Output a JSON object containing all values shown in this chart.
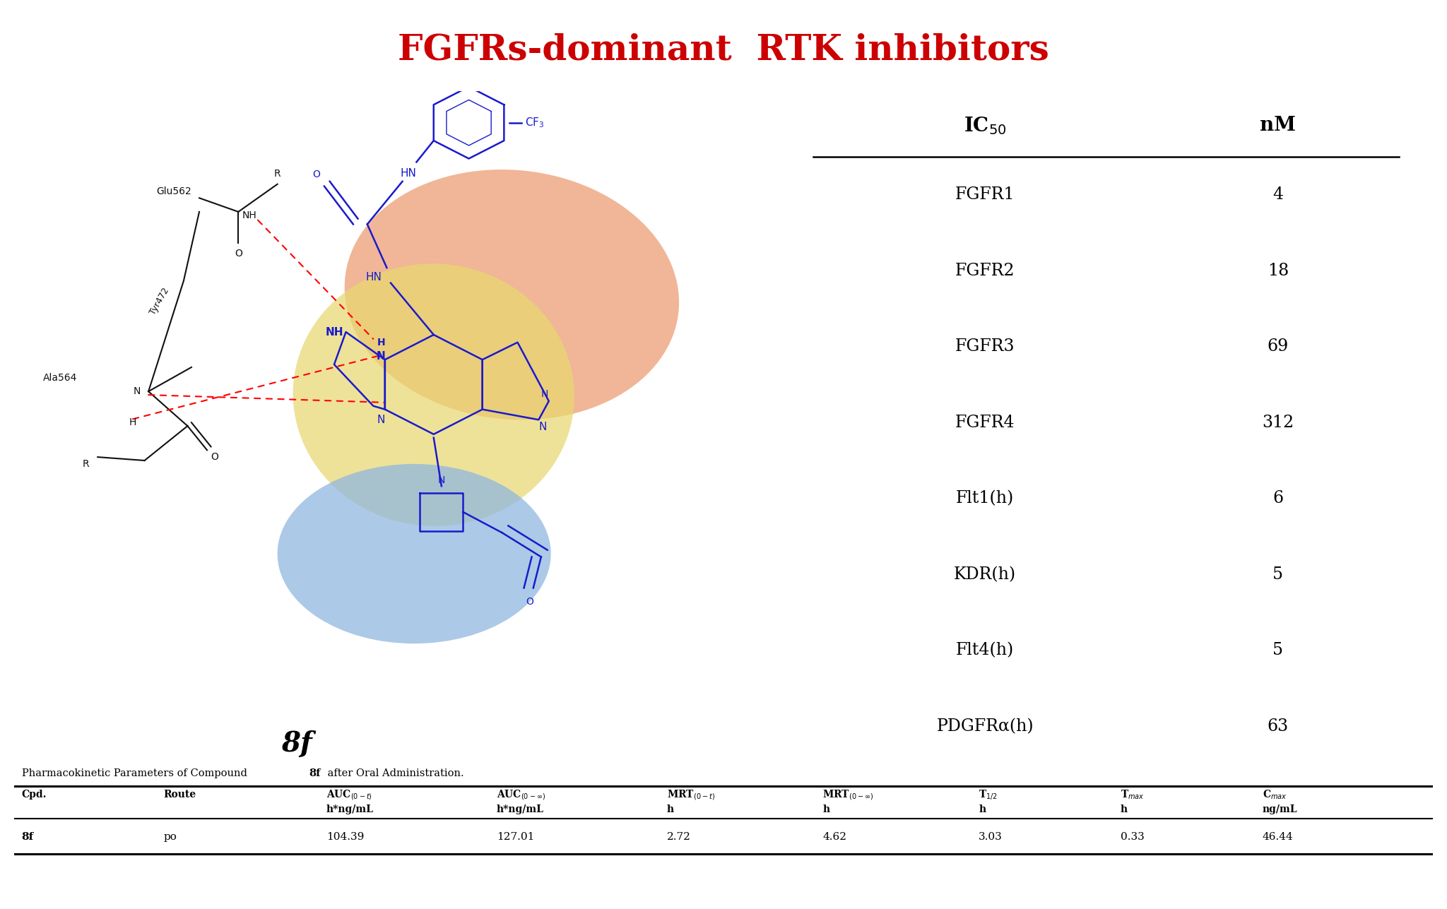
{
  "title": "FGFRs-dominant  RTK inhibitors",
  "title_color": "#cc0000",
  "title_fontsize": 36,
  "ic50_rows": [
    [
      "FGFR1",
      "4"
    ],
    [
      "FGFR2",
      "18"
    ],
    [
      "FGFR3",
      "69"
    ],
    [
      "FGFR4",
      "312"
    ],
    [
      "Flt1(h)",
      "6"
    ],
    [
      "KDR(h)",
      "5"
    ],
    [
      "Flt4(h)",
      "5"
    ],
    [
      "PDGFRα(h)",
      "63"
    ]
  ],
  "pk_caption_normal": "Pharmacokinetic Parameters of Compound ",
  "pk_caption_bold": "8f",
  "pk_caption_end": " after Oral Administration.",
  "pk_data": [
    "8f",
    "po",
    "104.39",
    "127.01",
    "2.72",
    "4.62",
    "3.03",
    "0.33",
    "46.44"
  ],
  "compound_label": "8f",
  "mol_color": "#1a1acc",
  "blob_orange": "#e89060",
  "blob_yellow": "#e8d870",
  "blob_blue": "#90b8e0",
  "background_color": "#ffffff"
}
